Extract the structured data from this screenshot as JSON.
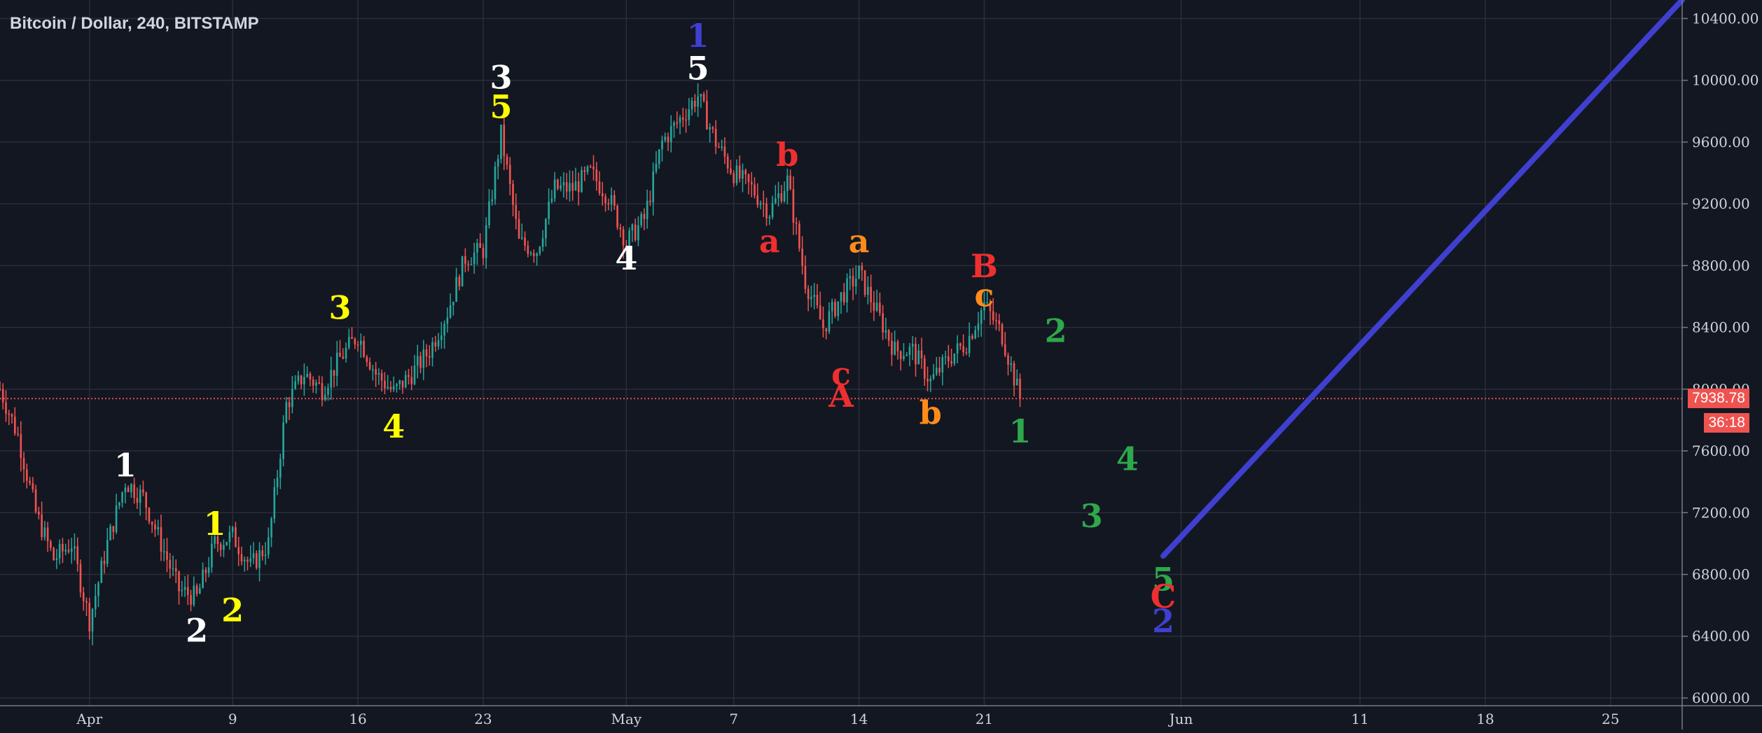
{
  "chart_data": {
    "type": "candlestick",
    "title": "Bitcoin / Dollar, 240, BITSTAMP",
    "xlim": [
      "2018-03-27",
      "2018-06-29"
    ],
    "ylim": [
      5950,
      10520
    ],
    "y_ticks": [
      "6000.00",
      "6400.00",
      "6800.00",
      "7200.00",
      "7600.00",
      "8000.00",
      "8400.00",
      "8800.00",
      "9200.00",
      "9600.00",
      "10000.00",
      "10400.00"
    ],
    "y_tick_values": [
      6000,
      6400,
      6800,
      7200,
      7600,
      8000,
      8400,
      8800,
      9200,
      9600,
      10000,
      10400
    ],
    "x_ticks": [
      "Apr",
      "9",
      "16",
      "23",
      "May",
      "7",
      "14",
      "21",
      "Jun",
      "11",
      "18",
      "25"
    ],
    "x_tick_dates": [
      "2018-04-01",
      "2018-04-09",
      "2018-04-16",
      "2018-04-23",
      "2018-05-01",
      "2018-05-07",
      "2018-05-14",
      "2018-05-21",
      "2018-06-01",
      "2018-06-11",
      "2018-06-18",
      "2018-06-25"
    ],
    "grid": true,
    "colors": {
      "background": "#131722",
      "grid": "#2a2e39",
      "up": "#26a69a",
      "down": "#ef5350",
      "text": "#d1d4dc",
      "projection": "#3f3fd0",
      "price_line": "#ef5350"
    },
    "price_path": [
      [
        "2018-03-27",
        8000
      ],
      [
        "2018-03-28",
        7700
      ],
      [
        "2018-03-29",
        7200
      ],
      [
        "2018-03-30",
        6900
      ],
      [
        "2018-03-31",
        7000
      ],
      [
        "2018-04-01",
        6500
      ],
      [
        "2018-04-02",
        7000
      ],
      [
        "2018-04-03",
        7400
      ],
      [
        "2018-04-04",
        7300
      ],
      [
        "2018-04-05",
        7000
      ],
      [
        "2018-04-06",
        6700
      ],
      [
        "2018-04-07",
        6650
      ],
      [
        "2018-04-08",
        7000
      ],
      [
        "2018-04-09",
        7050
      ],
      [
        "2018-04-10",
        6850
      ],
      [
        "2018-04-11",
        7000
      ],
      [
        "2018-04-12",
        7900
      ],
      [
        "2018-04-13",
        8100
      ],
      [
        "2018-04-14",
        8000
      ],
      [
        "2018-04-15",
        8200
      ],
      [
        "2018-04-16",
        8350
      ],
      [
        "2018-04-17",
        8100
      ],
      [
        "2018-04-18",
        7980
      ],
      [
        "2018-04-19",
        8100
      ],
      [
        "2018-04-20",
        8250
      ],
      [
        "2018-04-21",
        8500
      ],
      [
        "2018-04-22",
        8850
      ],
      [
        "2018-04-23",
        8900
      ],
      [
        "2018-04-24",
        9650
      ],
      [
        "2018-04-25",
        8950
      ],
      [
        "2018-04-26",
        8900
      ],
      [
        "2018-04-27",
        9300
      ],
      [
        "2018-04-28",
        9300
      ],
      [
        "2018-04-29",
        9400
      ],
      [
        "2018-04-30",
        9250
      ],
      [
        "2018-05-01",
        8950
      ],
      [
        "2018-05-02",
        9100
      ],
      [
        "2018-05-03",
        9600
      ],
      [
        "2018-05-04",
        9750
      ],
      [
        "2018-05-05",
        9900
      ],
      [
        "2018-05-06",
        9600
      ],
      [
        "2018-05-07",
        9400
      ],
      [
        "2018-05-08",
        9300
      ],
      [
        "2018-05-09",
        9150
      ],
      [
        "2018-05-10",
        9350
      ],
      [
        "2018-05-11",
        8700
      ],
      [
        "2018-05-12",
        8400
      ],
      [
        "2018-05-13",
        8600
      ],
      [
        "2018-05-14",
        8750
      ],
      [
        "2018-05-15",
        8500
      ],
      [
        "2018-05-16",
        8250
      ],
      [
        "2018-05-17",
        8250
      ],
      [
        "2018-05-18",
        8050
      ],
      [
        "2018-05-19",
        8200
      ],
      [
        "2018-05-20",
        8300
      ],
      [
        "2018-05-21",
        8550
      ],
      [
        "2018-05-22",
        8350
      ],
      [
        "2018-05-23",
        7938.78
      ]
    ],
    "last_price": "7938.78",
    "countdown": "36:18",
    "projection": {
      "from": [
        "2018-05-31",
        6920
      ],
      "to": [
        "2018-06-29",
        10520
      ]
    },
    "annotations": [
      {
        "text": "1",
        "color": "#ffffff",
        "date": "2018-04-03",
        "price": 7490
      },
      {
        "text": "2",
        "color": "#ffffff",
        "date": "2018-04-07",
        "price": 6420
      },
      {
        "text": "1",
        "color": "#ffff00",
        "date": "2018-04-08",
        "price": 7110
      },
      {
        "text": "2",
        "color": "#ffff00",
        "date": "2018-04-09",
        "price": 6550
      },
      {
        "text": "3",
        "color": "#ffff00",
        "date": "2018-04-15",
        "price": 8510
      },
      {
        "text": "4",
        "color": "#ffff00",
        "date": "2018-04-18",
        "price": 7740
      },
      {
        "text": "3",
        "color": "#ffffff",
        "date": "2018-04-24",
        "price": 10000
      },
      {
        "text": "5",
        "color": "#ffff00",
        "date": "2018-04-24",
        "price": 9810
      },
      {
        "text": "4",
        "color": "#ffffff",
        "date": "2018-05-01",
        "price": 8830
      },
      {
        "text": "1",
        "color": "#3f3fd0",
        "date": "2018-05-05",
        "price": 10270
      },
      {
        "text": "5",
        "color": "#ffffff",
        "date": "2018-05-05",
        "price": 10060
      },
      {
        "text": "a",
        "color": "#ef2f2f",
        "date": "2018-05-09",
        "price": 8940
      },
      {
        "text": "b",
        "color": "#ef2f2f",
        "date": "2018-05-10",
        "price": 9500
      },
      {
        "text": "c",
        "color": "#ef2f2f",
        "date": "2018-05-13",
        "price": 8080
      },
      {
        "text": "A",
        "color": "#ef2f2f",
        "date": "2018-05-13",
        "price": 7940
      },
      {
        "text": "a",
        "color": "#ff8c1a",
        "date": "2018-05-14",
        "price": 8940
      },
      {
        "text": "b",
        "color": "#ff8c1a",
        "date": "2018-05-18",
        "price": 7830
      },
      {
        "text": "B",
        "color": "#ef2f2f",
        "date": "2018-05-21",
        "price": 8780
      },
      {
        "text": "c",
        "color": "#ff8c1a",
        "date": "2018-05-21",
        "price": 8590
      },
      {
        "text": "1",
        "color": "#2ea84a",
        "date": "2018-05-23",
        "price": 7710
      },
      {
        "text": "2",
        "color": "#2ea84a",
        "date": "2018-05-25",
        "price": 8360
      },
      {
        "text": "3",
        "color": "#2ea84a",
        "date": "2018-05-27",
        "price": 7160
      },
      {
        "text": "4",
        "color": "#2ea84a",
        "date": "2018-05-29",
        "price": 7530
      },
      {
        "text": "5",
        "color": "#2ea84a",
        "date": "2018-05-31",
        "price": 6750
      },
      {
        "text": "C",
        "color": "#ef2f2f",
        "date": "2018-05-31",
        "price": 6640
      },
      {
        "text": "2",
        "color": "#3f3fd0",
        "date": "2018-05-31",
        "price": 6480
      }
    ]
  }
}
